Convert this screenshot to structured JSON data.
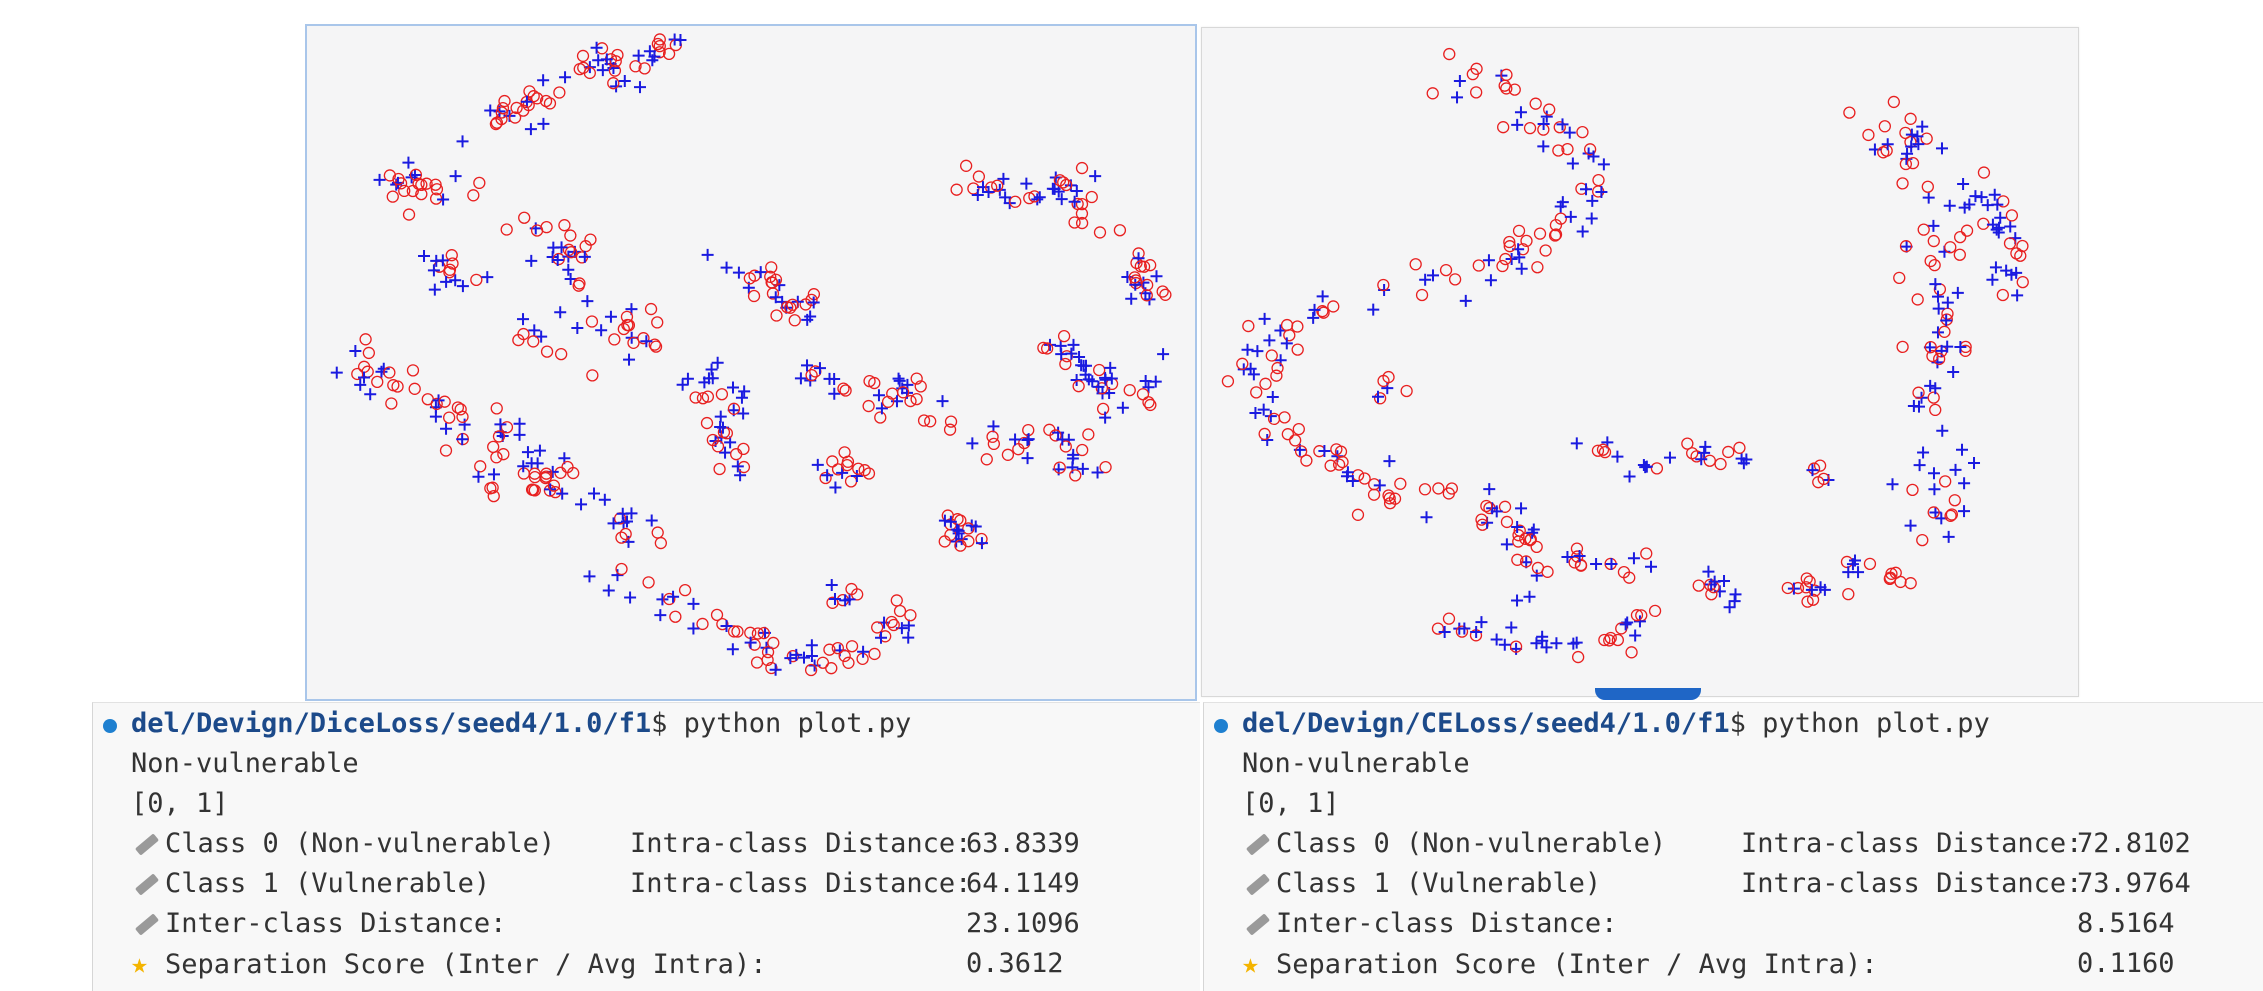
{
  "left_terminal": {
    "path": "del/Devign/DiceLoss/seed4/1.0/f1",
    "command": "$ python plot.py",
    "line1": "Non-vulnerable",
    "line2": "[0, 1]",
    "rows": [
      {
        "icon": "ruler-icon",
        "label": "Class 0 (Non-vulnerable)",
        "metric": "Intra-class Distance:",
        "value": "63.8339"
      },
      {
        "icon": "ruler-icon",
        "label": "Class 1 (Vulnerable)",
        "metric": "Intra-class Distance:",
        "value": "64.1149"
      },
      {
        "icon": "ruler-icon",
        "label": "Inter-class Distance:",
        "metric": "",
        "value": "23.1096"
      },
      {
        "icon": "star-icon",
        "label": "Separation Score (Inter / Avg Intra):",
        "metric": "",
        "value": "0.3612"
      }
    ]
  },
  "right_terminal": {
    "path": "del/Devign/CELoss/seed4/1.0/f1",
    "command": "$ python plot.py",
    "line1": "Non-vulnerable",
    "line2": "[0, 1]",
    "rows": [
      {
        "icon": "ruler-icon",
        "label": "Class 0 (Non-vulnerable)",
        "metric": "Intra-class Distance:",
        "value": "72.8102"
      },
      {
        "icon": "ruler-icon",
        "label": "Class 1 (Vulnerable)",
        "metric": "Intra-class Distance:",
        "value": "73.9764"
      },
      {
        "icon": "ruler-icon",
        "label": "Inter-class Distance:",
        "metric": "",
        "value": "8.5164"
      },
      {
        "icon": "star-icon",
        "label": "Separation Score (Inter / Avg Intra):",
        "metric": "",
        "value": "0.1160"
      }
    ]
  },
  "chart_data": [
    {
      "type": "scatter",
      "panel": "left",
      "title": "",
      "xlabel": "",
      "ylabel": "",
      "grid": false,
      "marker_colors": {
        "class_0": "#e82020",
        "class_1": "#1a1ae0"
      },
      "markers": {
        "class_0": "circle",
        "class_1": "plus"
      },
      "clusters": [
        {
          "pts": [
            [
              0.18,
              0.17
            ],
            [
              0.26,
              0.11
            ],
            [
              0.34,
              0.06
            ],
            [
              0.42,
              0.03
            ]
          ],
          "spread": 0.018,
          "n": 60
        },
        {
          "pts": [
            [
              0.09,
              0.23
            ],
            [
              0.17,
              0.25
            ]
          ],
          "spread": 0.015,
          "n": 25
        },
        {
          "pts": [
            [
              0.15,
              0.34
            ],
            [
              0.17,
              0.39
            ]
          ],
          "spread": 0.012,
          "n": 15
        },
        {
          "pts": [
            [
              0.23,
              0.29
            ],
            [
              0.29,
              0.33
            ],
            [
              0.31,
              0.36
            ]
          ],
          "spread": 0.015,
          "n": 25
        },
        {
          "pts": [
            [
              0.24,
              0.46
            ],
            [
              0.33,
              0.45
            ],
            [
              0.39,
              0.47
            ]
          ],
          "spread": 0.018,
          "n": 30
        },
        {
          "pts": [
            [
              0.05,
              0.49
            ],
            [
              0.1,
              0.54
            ],
            [
              0.15,
              0.58
            ],
            [
              0.22,
              0.62
            ],
            [
              0.28,
              0.66
            ]
          ],
          "spread": 0.018,
          "n": 55
        },
        {
          "pts": [
            [
              0.17,
              0.68
            ],
            [
              0.26,
              0.66
            ],
            [
              0.32,
              0.72
            ],
            [
              0.39,
              0.76
            ]
          ],
          "spread": 0.015,
          "n": 35
        },
        {
          "pts": [
            [
              0.33,
              0.82
            ],
            [
              0.43,
              0.87
            ],
            [
              0.49,
              0.92
            ],
            [
              0.55,
              0.94
            ],
            [
              0.62,
              0.93
            ],
            [
              0.68,
              0.87
            ]
          ],
          "spread": 0.014,
          "n": 65
        },
        {
          "pts": [
            [
              0.48,
              0.35
            ],
            [
              0.53,
              0.4
            ],
            [
              0.56,
              0.44
            ]
          ],
          "spread": 0.016,
          "n": 30
        },
        {
          "pts": [
            [
              0.44,
              0.52
            ],
            [
              0.48,
              0.56
            ],
            [
              0.46,
              0.61
            ],
            [
              0.5,
              0.64
            ]
          ],
          "spread": 0.015,
          "n": 35
        },
        {
          "pts": [
            [
              0.57,
              0.51
            ],
            [
              0.62,
              0.53
            ],
            [
              0.66,
              0.54
            ],
            [
              0.71,
              0.58
            ]
          ],
          "spread": 0.015,
          "n": 35
        },
        {
          "pts": [
            [
              0.58,
              0.64
            ],
            [
              0.62,
              0.67
            ]
          ],
          "spread": 0.012,
          "n": 15
        },
        {
          "pts": [
            [
              0.72,
              0.74
            ],
            [
              0.75,
              0.76
            ]
          ],
          "spread": 0.014,
          "n": 20
        },
        {
          "pts": [
            [
              0.59,
              0.84
            ],
            [
              0.61,
              0.85
            ]
          ],
          "spread": 0.008,
          "n": 8
        },
        {
          "pts": [
            [
              0.73,
              0.22
            ],
            [
              0.8,
              0.25
            ],
            [
              0.87,
              0.24
            ],
            [
              0.9,
              0.3
            ]
          ],
          "spread": 0.016,
          "n": 40
        },
        {
          "pts": [
            [
              0.93,
              0.35
            ],
            [
              0.95,
              0.4
            ]
          ],
          "spread": 0.014,
          "n": 20
        },
        {
          "pts": [
            [
              0.84,
              0.47
            ],
            [
              0.88,
              0.52
            ],
            [
              0.92,
              0.56
            ],
            [
              0.95,
              0.5
            ]
          ],
          "spread": 0.017,
          "n": 40
        },
        {
          "pts": [
            [
              0.76,
              0.63
            ],
            [
              0.84,
              0.61
            ],
            [
              0.88,
              0.66
            ]
          ],
          "spread": 0.016,
          "n": 30
        }
      ]
    },
    {
      "type": "scatter",
      "panel": "right",
      "title": "",
      "xlabel": "",
      "ylabel": "",
      "grid": false,
      "marker_colors": {
        "class_0": "#e82020",
        "class_1": "#1a1ae0"
      },
      "markers": {
        "class_0": "circle",
        "class_1": "plus"
      },
      "clusters": [
        {
          "pts": [
            [
              0.29,
              0.05
            ],
            [
              0.37,
              0.12
            ],
            [
              0.43,
              0.19
            ],
            [
              0.44,
              0.26
            ],
            [
              0.38,
              0.32
            ],
            [
              0.3,
              0.37
            ],
            [
              0.2,
              0.4
            ]
          ],
          "spread": 0.017,
          "n": 75
        },
        {
          "pts": [
            [
              0.14,
              0.41
            ],
            [
              0.08,
              0.46
            ],
            [
              0.05,
              0.51
            ],
            [
              0.07,
              0.58
            ],
            [
              0.13,
              0.64
            ],
            [
              0.2,
              0.68
            ],
            [
              0.28,
              0.72
            ]
          ],
          "spread": 0.017,
          "n": 70
        },
        {
          "pts": [
            [
              0.3,
              0.7
            ],
            [
              0.36,
              0.74
            ],
            [
              0.38,
              0.8
            ],
            [
              0.36,
              0.84
            ]
          ],
          "spread": 0.013,
          "n": 30
        },
        {
          "pts": [
            [
              0.27,
              0.89
            ],
            [
              0.36,
              0.93
            ],
            [
              0.44,
              0.92
            ],
            [
              0.51,
              0.88
            ]
          ],
          "spread": 0.011,
          "n": 35
        },
        {
          "pts": [
            [
              0.42,
              0.8
            ],
            [
              0.47,
              0.81
            ],
            [
              0.51,
              0.8
            ]
          ],
          "spread": 0.01,
          "n": 15
        },
        {
          "pts": [
            [
              0.44,
              0.63
            ],
            [
              0.51,
              0.66
            ],
            [
              0.58,
              0.64
            ],
            [
              0.63,
              0.64
            ]
          ],
          "spread": 0.01,
          "n": 25
        },
        {
          "pts": [
            [
              0.57,
              0.83
            ],
            [
              0.6,
              0.85
            ]
          ],
          "spread": 0.01,
          "n": 12
        },
        {
          "pts": [
            [
              0.7,
              0.66
            ],
            [
              0.71,
              0.68
            ]
          ],
          "spread": 0.006,
          "n": 6
        },
        {
          "pts": [
            [
              0.78,
              0.14
            ],
            [
              0.81,
              0.2
            ],
            [
              0.84,
              0.28
            ],
            [
              0.82,
              0.37
            ],
            [
              0.85,
              0.46
            ],
            [
              0.83,
              0.55
            ],
            [
              0.84,
              0.66
            ],
            [
              0.83,
              0.76
            ]
          ],
          "spread": 0.02,
          "n": 95
        },
        {
          "pts": [
            [
              0.88,
              0.22
            ],
            [
              0.91,
              0.3
            ],
            [
              0.93,
              0.4
            ]
          ],
          "spread": 0.016,
          "n": 30
        },
        {
          "pts": [
            [
              0.68,
              0.84
            ],
            [
              0.75,
              0.8
            ],
            [
              0.8,
              0.82
            ]
          ],
          "spread": 0.013,
          "n": 25
        },
        {
          "pts": [
            [
              0.2,
              0.55
            ],
            [
              0.22,
              0.53
            ]
          ],
          "spread": 0.006,
          "n": 6
        }
      ]
    }
  ]
}
